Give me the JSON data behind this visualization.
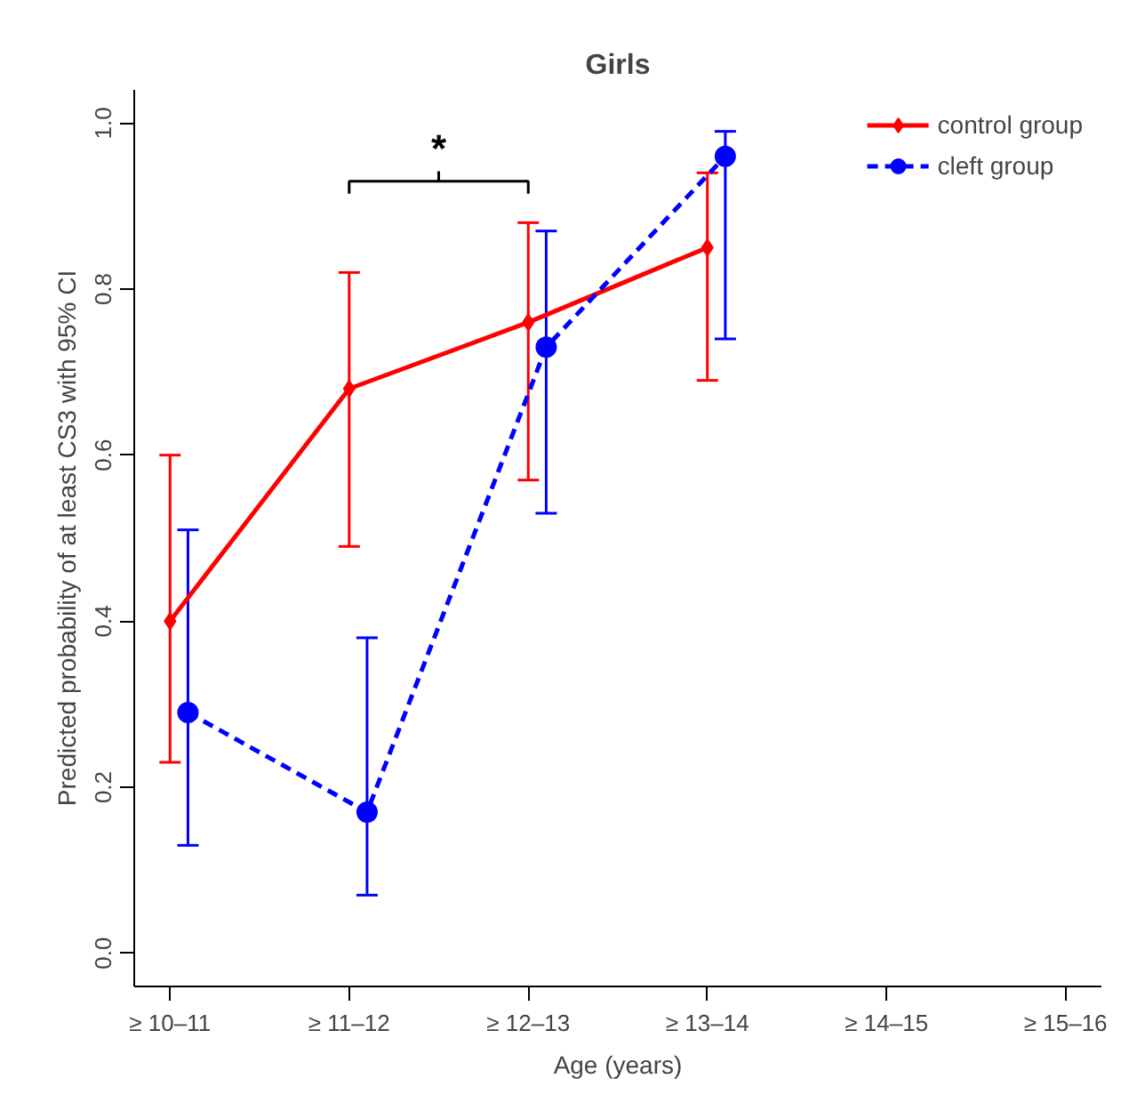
{
  "chart_data": {
    "type": "line",
    "title": "Girls",
    "xlabel": "Age (years)",
    "ylabel": "Predicted probability of at least CS3 with 95% CI",
    "categories": [
      "≥ 10–11",
      "≥ 11–12",
      "≥ 12–13",
      "≥ 13–14",
      "≥ 14–15",
      "≥ 15–16"
    ],
    "ylim": [
      -0.04,
      1.04
    ],
    "yticks": [
      {
        "value": 0,
        "label": "0.0"
      },
      {
        "value": 0.2,
        "label": "0.2"
      },
      {
        "value": 0.4,
        "label": "0.4"
      },
      {
        "value": 0.6,
        "label": "0.6"
      },
      {
        "value": 0.8,
        "label": "0.8"
      },
      {
        "value": 1,
        "label": "1.0"
      }
    ],
    "series": [
      {
        "name": "control group",
        "color": "#ff0000",
        "marker": "diamond",
        "line_style": "solid",
        "values": [
          0.4,
          0.68,
          0.76,
          0.85,
          null,
          null
        ],
        "errors": [
          [
            0.23,
            0.6
          ],
          [
            0.49,
            0.82
          ],
          [
            0.57,
            0.88
          ],
          [
            0.69,
            0.94
          ],
          null,
          null
        ]
      },
      {
        "name": "cleft group",
        "color": "#0000ff",
        "marker": "circle",
        "line_style": "dashed",
        "values": [
          0.29,
          0.17,
          0.73,
          0.96,
          null,
          null
        ],
        "errors": [
          [
            0.13,
            0.51
          ],
          [
            0.07,
            0.38
          ],
          [
            0.53,
            0.87
          ],
          [
            0.74,
            0.99
          ],
          null,
          null
        ]
      }
    ],
    "annotations": [
      "*"
    ],
    "legend": "top right",
    "grid": false
  }
}
